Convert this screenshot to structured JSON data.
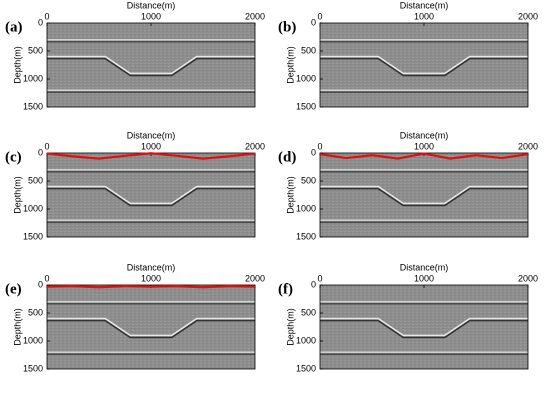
{
  "chart_data": [
    {
      "type": "image",
      "label": "(a)",
      "x_label": "Distance(m)",
      "y_label": "Depth(m)",
      "xlim": [
        0,
        2000
      ],
      "ylim": [
        0,
        1500
      ],
      "xticks": [
        0,
        1000,
        2000
      ],
      "yticks": [
        0,
        500,
        1000,
        1500
      ]
    },
    {
      "type": "image",
      "label": "(b)",
      "x_label": "Distance(m)",
      "y_label": "Depth(m)",
      "xlim": [
        0,
        2000
      ],
      "ylim": [
        0,
        1500
      ],
      "xticks": [
        0,
        1000,
        2000
      ],
      "yticks": [
        0,
        500,
        1000,
        1500
      ]
    },
    {
      "type": "image",
      "label": "(c)",
      "x_label": "Distance(m)",
      "y_label": "Depth(m)",
      "xlim": [
        0,
        2000
      ],
      "ylim": [
        0,
        1500
      ],
      "xticks": [
        0,
        1000,
        2000
      ],
      "yticks": [
        0,
        500,
        1000,
        1500
      ],
      "color": "#e01010",
      "x": [
        0,
        250,
        500,
        750,
        1000,
        1250,
        1500,
        1750,
        2000
      ],
      "values": [
        10,
        60,
        100,
        50,
        5,
        50,
        100,
        60,
        10
      ]
    },
    {
      "type": "image",
      "label": "(d)",
      "x_label": "Distance(m)",
      "y_label": "Depth(m)",
      "xlim": [
        0,
        2000
      ],
      "ylim": [
        0,
        1500
      ],
      "xticks": [
        0,
        1000,
        2000
      ],
      "yticks": [
        0,
        500,
        1000,
        1500
      ],
      "color": "#e01010",
      "x": [
        0,
        250,
        500,
        750,
        1000,
        1250,
        1500,
        1750,
        2000
      ],
      "values": [
        20,
        90,
        40,
        100,
        10,
        100,
        40,
        90,
        20
      ]
    },
    {
      "type": "image",
      "label": "(e)",
      "x_label": "Distance(m)",
      "y_label": "Depth(m)",
      "xlim": [
        0,
        2000
      ],
      "ylim": [
        0,
        1500
      ],
      "xticks": [
        0,
        1000,
        2000
      ],
      "yticks": [
        0,
        500,
        1000,
        1500
      ],
      "color": "#e01010",
      "x": [
        0,
        250,
        500,
        750,
        1000,
        1250,
        1500,
        1750,
        2000
      ],
      "values": [
        30,
        20,
        40,
        20,
        30,
        20,
        40,
        20,
        30
      ]
    },
    {
      "type": "image",
      "label": "(f)",
      "x_label": "Distance(m)",
      "y_label": "Depth(m)",
      "xlim": [
        0,
        2000
      ],
      "ylim": [
        0,
        1500
      ],
      "xticks": [
        0,
        1000,
        2000
      ],
      "yticks": [
        0,
        500,
        1000,
        1500
      ]
    }
  ]
}
